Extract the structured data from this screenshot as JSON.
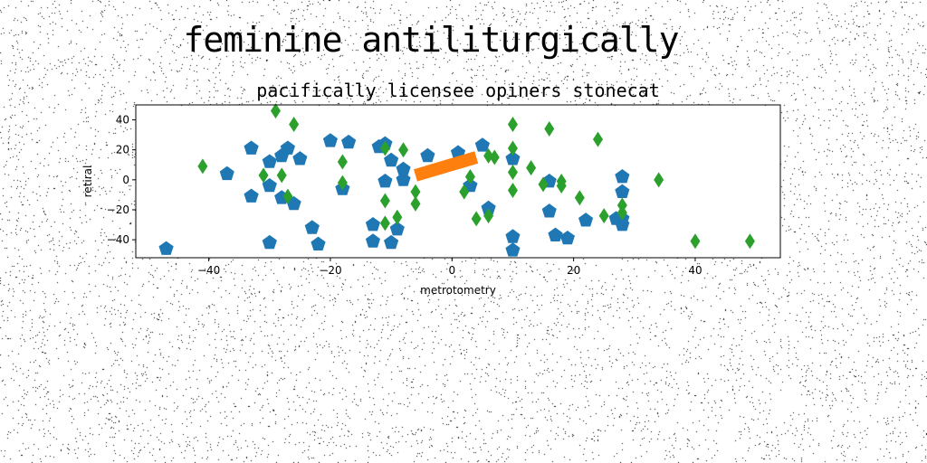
{
  "figure": {
    "suptitle": "feminine antiliturgically",
    "subtitle": "pacifically licensee opiners stonecat"
  },
  "chart_data": {
    "type": "scatter",
    "title": "pacifically licensee opiners stonecat",
    "xlabel": "metrotometry",
    "ylabel": "retiral",
    "xlim": [
      -52,
      54
    ],
    "ylim": [
      -52,
      50
    ],
    "xticks": [
      -40,
      -20,
      0,
      20,
      40
    ],
    "yticks": [
      -40,
      -20,
      0,
      20,
      40
    ],
    "grid": false,
    "series": [
      {
        "marker": "pentagon",
        "color": "#1f77b4",
        "points": [
          [
            -47,
            -46
          ],
          [
            -37,
            4
          ],
          [
            -33,
            -11
          ],
          [
            -33,
            21
          ],
          [
            -30,
            -42
          ],
          [
            -30,
            -4
          ],
          [
            -30,
            12
          ],
          [
            -28,
            16
          ],
          [
            -28,
            -12
          ],
          [
            -27,
            21
          ],
          [
            -26,
            -16
          ],
          [
            -25,
            14
          ],
          [
            -23,
            -32
          ],
          [
            -22,
            -43
          ],
          [
            -20,
            26
          ],
          [
            -18,
            -6
          ],
          [
            -17,
            25
          ],
          [
            -13,
            -30
          ],
          [
            -13,
            -41
          ],
          [
            -12,
            22
          ],
          [
            -11,
            -1
          ],
          [
            -11,
            24
          ],
          [
            -10,
            -42
          ],
          [
            -10,
            13
          ],
          [
            -9,
            -33
          ],
          [
            -8,
            0
          ],
          [
            -8,
            7
          ],
          [
            -4,
            16
          ],
          [
            1,
            18
          ],
          [
            3,
            -4
          ],
          [
            5,
            23
          ],
          [
            6,
            -19
          ],
          [
            10,
            -38
          ],
          [
            10,
            -47
          ],
          [
            10,
            14
          ],
          [
            16,
            -1
          ],
          [
            16,
            -21
          ],
          [
            17,
            -37
          ],
          [
            19,
            -39
          ],
          [
            22,
            -27
          ],
          [
            27,
            -26
          ],
          [
            28,
            2
          ],
          [
            28,
            -8
          ],
          [
            28,
            -26
          ],
          [
            28,
            -30
          ]
        ]
      },
      {
        "marker": "line",
        "color": "#ff7f0e",
        "points": [
          [
            -6,
            3
          ],
          [
            4,
            15
          ]
        ]
      },
      {
        "marker": "thin_diamond",
        "color": "#2ca02c",
        "points": [
          [
            -41,
            9
          ],
          [
            -31,
            3
          ],
          [
            -29,
            46
          ],
          [
            -28,
            3
          ],
          [
            -27,
            -11
          ],
          [
            -26,
            37
          ],
          [
            -18,
            12
          ],
          [
            -18,
            -2
          ],
          [
            -11,
            21
          ],
          [
            -11,
            -14
          ],
          [
            -11,
            -29
          ],
          [
            -9,
            -25
          ],
          [
            -8,
            20
          ],
          [
            -6,
            -8
          ],
          [
            -6,
            -16
          ],
          [
            2,
            -8
          ],
          [
            3,
            2
          ],
          [
            4,
            -26
          ],
          [
            6,
            16
          ],
          [
            6,
            -24
          ],
          [
            7,
            15
          ],
          [
            10,
            -7
          ],
          [
            10,
            37
          ],
          [
            10,
            5
          ],
          [
            10,
            21
          ],
          [
            13,
            8
          ],
          [
            15,
            -3
          ],
          [
            16,
            34
          ],
          [
            18,
            -1
          ],
          [
            18,
            -4
          ],
          [
            21,
            -12
          ],
          [
            24,
            27
          ],
          [
            25,
            -24
          ],
          [
            28,
            -17
          ],
          [
            28,
            -22
          ],
          [
            34,
            0
          ],
          [
            40,
            -41
          ],
          [
            49,
            -41
          ]
        ]
      }
    ]
  }
}
